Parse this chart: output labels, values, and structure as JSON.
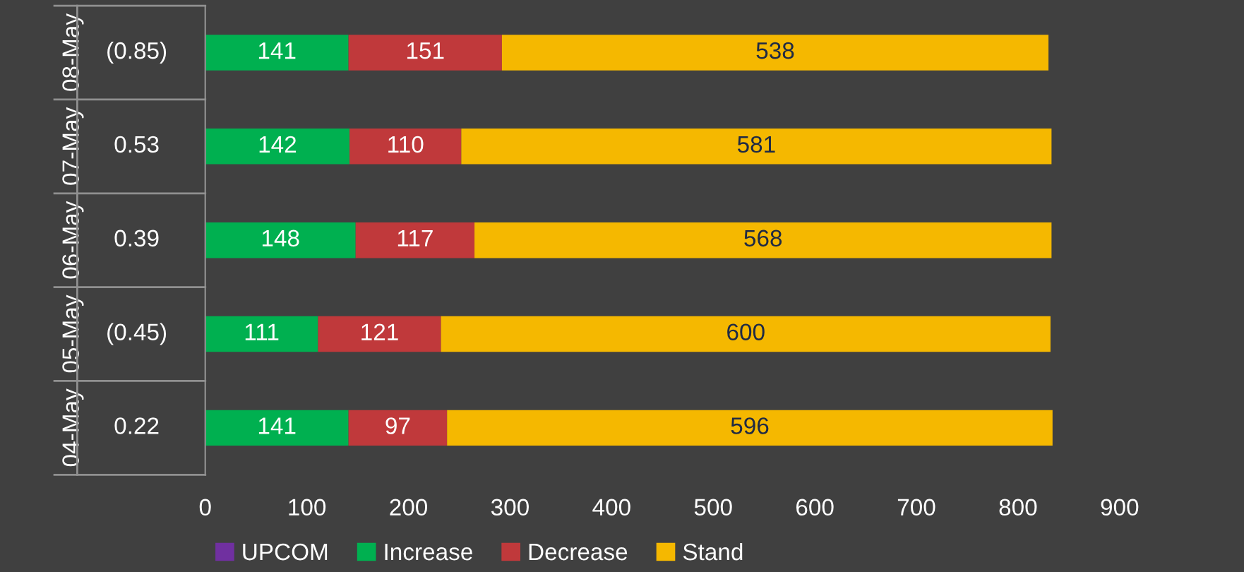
{
  "chart_data": {
    "type": "bar",
    "orientation": "horizontal",
    "stacked": true,
    "categories": [
      "08-May",
      "07-May",
      "06-May",
      "05-May",
      "04-May"
    ],
    "series": [
      {
        "name": "UPCOM",
        "color": "#7030a0",
        "values": [
          null,
          null,
          null,
          null,
          null
        ],
        "value_labels": [
          "(0.85)",
          "0.53",
          "0.39",
          "(0.45)",
          "0.22"
        ]
      },
      {
        "name": "Increase",
        "color": "#00b050",
        "values": [
          141,
          142,
          148,
          111,
          141
        ]
      },
      {
        "name": "Decrease",
        "color": "#c0393b",
        "values": [
          151,
          110,
          117,
          121,
          97
        ]
      },
      {
        "name": "Stand",
        "color": "#f5b800",
        "values": [
          538,
          581,
          568,
          600,
          596
        ]
      }
    ],
    "data_labels": true,
    "xlim": [
      0,
      900
    ],
    "xticks": [
      0,
      100,
      200,
      300,
      400,
      500,
      600,
      700,
      800,
      900
    ],
    "grid": false,
    "legend": "bottom"
  }
}
